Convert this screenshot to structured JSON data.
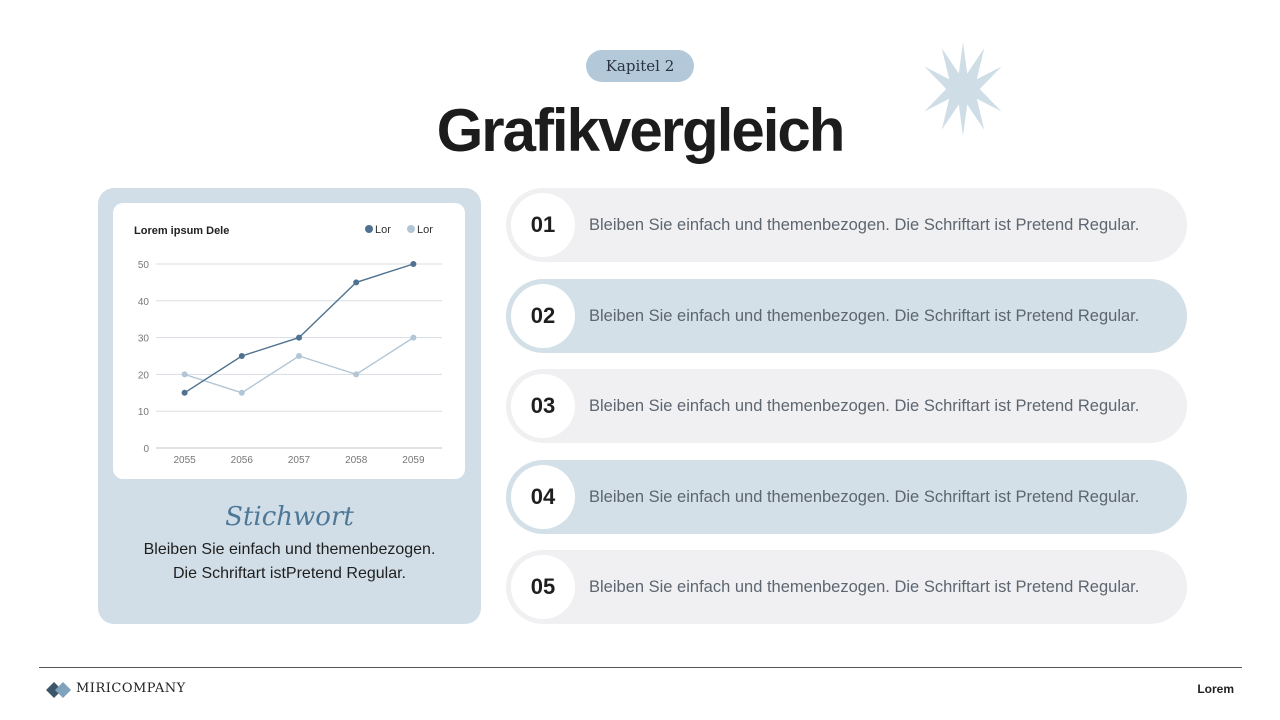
{
  "header": {
    "chapter": "Kapitel 2",
    "title": "Grafikvergleich"
  },
  "colors": {
    "series_dark": "#4e7290",
    "series_light": "#b2c6d5",
    "panel_blue": "#d1dee7",
    "item_light": "#f0f0f2",
    "item_blue": "#d3e0e8"
  },
  "chart_data": {
    "type": "line",
    "title": "Lorem ipsum Dele",
    "x": [
      "2055",
      "2056",
      "2057",
      "2058",
      "2059"
    ],
    "ylim": [
      0,
      50
    ],
    "yticks": [
      0,
      10,
      20,
      30,
      40,
      50
    ],
    "grid": true,
    "legend_position": "top-right",
    "series": [
      {
        "name": "Lor",
        "color": "#4e7290",
        "values": [
          15,
          25,
          30,
          45,
          50
        ]
      },
      {
        "name": "Lor",
        "color": "#b2c6d5",
        "values": [
          20,
          15,
          25,
          20,
          30
        ]
      }
    ]
  },
  "left_panel": {
    "keyword": "Stichwort",
    "description_line1": "Bleiben Sie einfach und themenbezogen.",
    "description_line2": "Die Schriftart istPretend Regular."
  },
  "items": [
    {
      "number": "01",
      "text": "Bleiben Sie einfach und themenbezogen. Die Schriftart ist Pretend Regular.",
      "style": "light"
    },
    {
      "number": "02",
      "text": "Bleiben Sie einfach und themenbezogen. Die Schriftart ist Pretend Regular.",
      "style": "blue"
    },
    {
      "number": "03",
      "text": "Bleiben Sie einfach und themenbezogen. Die Schriftart ist Pretend Regular.",
      "style": "light"
    },
    {
      "number": "04",
      "text": "Bleiben Sie einfach und themenbezogen. Die Schriftart ist Pretend Regular.",
      "style": "blue"
    },
    {
      "number": "05",
      "text": "Bleiben Sie einfach und themenbezogen. Die Schriftart ist Pretend Regular.",
      "style": "light"
    }
  ],
  "footer": {
    "company": "MIRICOMPANY",
    "right_label": "Lorem",
    "logo_icon": "diamond-logo-icon"
  }
}
